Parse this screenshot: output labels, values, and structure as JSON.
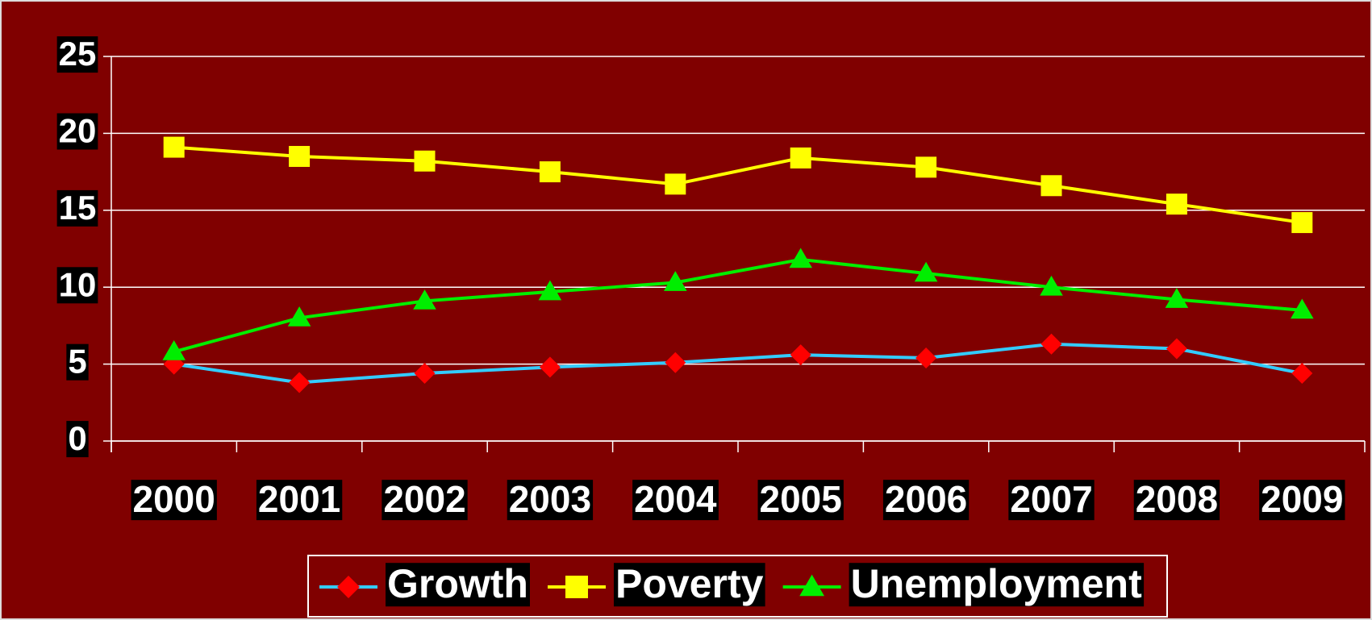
{
  "chart_data": {
    "type": "line",
    "categories": [
      "2000",
      "2001",
      "2002",
      "2003",
      "2004",
      "2005",
      "2006",
      "2007",
      "2008",
      "2009"
    ],
    "series": [
      {
        "name": "Growth",
        "color": "#33ccff",
        "marker": "diamond",
        "marker_color": "#ff0000",
        "values": [
          5.0,
          3.8,
          4.4,
          4.8,
          5.1,
          5.6,
          5.4,
          6.3,
          6.0,
          4.4
        ]
      },
      {
        "name": "Poverty",
        "color": "#ffff00",
        "marker": "square",
        "marker_color": "#ffff00",
        "values": [
          19.1,
          18.5,
          18.2,
          17.5,
          16.7,
          18.4,
          17.8,
          16.6,
          15.4,
          14.2
        ]
      },
      {
        "name": "Unemployment",
        "color": "#00ee00",
        "marker": "triangle",
        "marker_color": "#00ee00",
        "values": [
          5.8,
          8.0,
          9.1,
          9.7,
          10.3,
          11.8,
          10.9,
          10.0,
          9.2,
          8.5
        ]
      }
    ],
    "ylim": [
      0,
      25
    ],
    "yticks": [
      0,
      5,
      10,
      15,
      20,
      25
    ],
    "grid": true,
    "legend": "bottom"
  }
}
